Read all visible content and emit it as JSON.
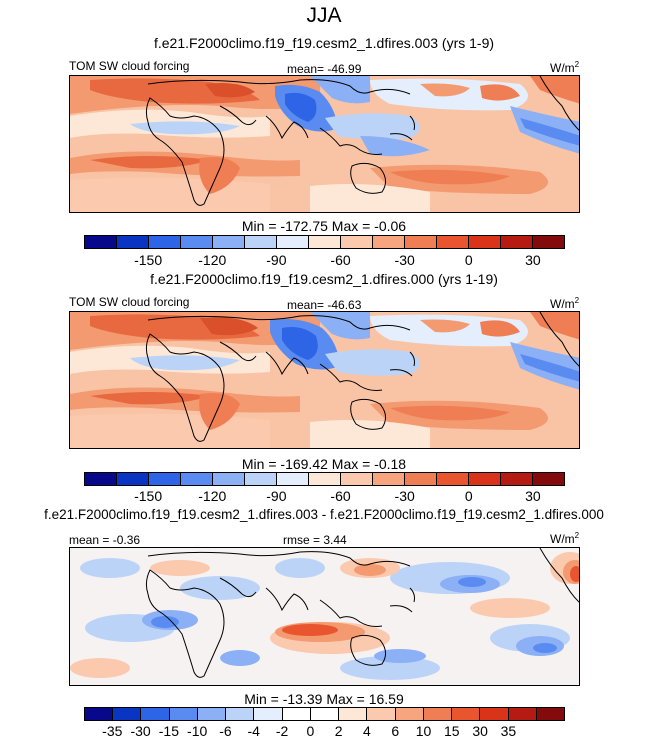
{
  "season": "JJA",
  "panels": [
    {
      "title": "f.e21.F2000climo.f19_f19.cesm2_1.dfires.003 (yrs 1-9)",
      "left_label": "TOM SW cloud forcing",
      "center_label": "mean= -46.99",
      "units": "W/m",
      "units_sup": "2",
      "minmax": "Min = -172.75 Max =  -0.06",
      "colorbar_ticks": [
        "-150",
        "-120",
        "-90",
        "-60",
        "-30",
        "0",
        "30"
      ]
    },
    {
      "title": "f.e21.F2000climo.f19_f19.cesm2_1.dfires.000 (yrs 1-19)",
      "left_label": "TOM SW cloud forcing",
      "center_label": "mean= -46.63",
      "units": "W/m",
      "units_sup": "2",
      "minmax": "Min = -169.42 Max =  -0.18",
      "colorbar_ticks": [
        "-150",
        "-120",
        "-90",
        "-60",
        "-30",
        "0",
        "30"
      ]
    },
    {
      "title": "f.e21.F2000climo.f19_f19.cesm2_1.dfires.003 - f.e21.F2000climo.f19_f19.cesm2_1.dfires.000",
      "left_label": "mean =  -0.36",
      "center_label": "rmse =  3.44",
      "units": "W/m",
      "units_sup": "2",
      "minmax": "Min = -13.39 Max =  16.59",
      "colorbar_ticks": [
        "-35",
        "-30",
        "-15",
        "-10",
        "-6",
        "-4",
        "-2",
        "0",
        "2",
        "4",
        "6",
        "10",
        "15",
        "30",
        "35"
      ]
    }
  ],
  "colors": {
    "colorbar": [
      "#08088a",
      "#0a35c2",
      "#2e64e6",
      "#5a8bf0",
      "#8cb0f5",
      "#bcd3f8",
      "#e4eefc",
      "#fde8d8",
      "#fbc9ad",
      "#f7a57f",
      "#f07e54",
      "#e8552f",
      "#d9341a",
      "#b51b12",
      "#840b0b"
    ],
    "diff_colorbar": [
      "#08088a",
      "#0a35c2",
      "#2e64e6",
      "#5a8bf0",
      "#8cb0f5",
      "#bcd3f8",
      "#e4eefc",
      "#ffffff",
      "#ffffff",
      "#fde8d8",
      "#fbc9ad",
      "#f7a57f",
      "#f07e54",
      "#e8552f",
      "#d9341a",
      "#b51b12",
      "#840b0b"
    ]
  },
  "chart_data": [
    {
      "type": "heatmap",
      "title": "f.e21.F2000climo.f19_f19.cesm2_1.dfires.003 (yrs 1-9)",
      "variable": "TOM SW cloud forcing",
      "units": "W/m2",
      "mean": -46.99,
      "min": -172.75,
      "max": -0.06,
      "colorbar_levels": [
        -150,
        -120,
        -90,
        -60,
        -30,
        0,
        30
      ]
    },
    {
      "type": "heatmap",
      "title": "f.e21.F2000climo.f19_f19.cesm2_1.dfires.000 (yrs 1-19)",
      "variable": "TOM SW cloud forcing",
      "units": "W/m2",
      "mean": -46.63,
      "min": -169.42,
      "max": -0.18,
      "colorbar_levels": [
        -150,
        -120,
        -90,
        -60,
        -30,
        0,
        30
      ]
    },
    {
      "type": "heatmap",
      "title": "f.e21.F2000climo.f19_f19.cesm2_1.dfires.003 - f.e21.F2000climo.f19_f19.cesm2_1.dfires.000",
      "units": "W/m2",
      "mean": -0.36,
      "rmse": 3.44,
      "min": -13.39,
      "max": 16.59,
      "colorbar_levels": [
        -35,
        -30,
        -15,
        -10,
        -6,
        -4,
        -2,
        0,
        2,
        4,
        6,
        10,
        15,
        30,
        35
      ]
    }
  ]
}
